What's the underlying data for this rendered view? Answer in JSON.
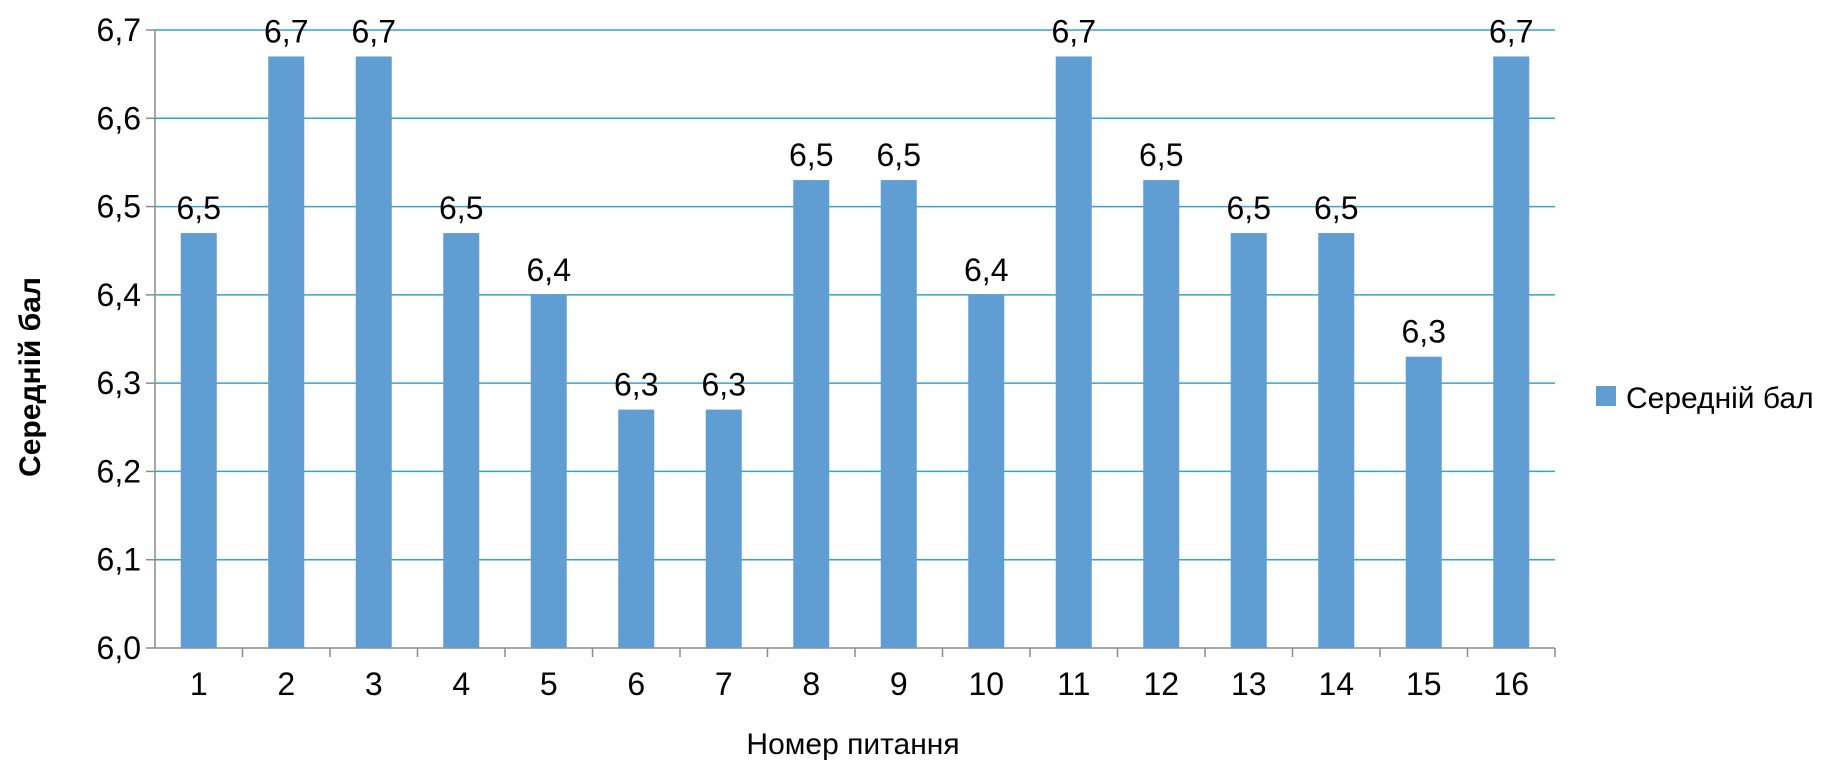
{
  "chart_data": {
    "type": "bar",
    "categories": [
      "1",
      "2",
      "3",
      "4",
      "5",
      "6",
      "7",
      "8",
      "9",
      "10",
      "11",
      "12",
      "13",
      "14",
      "15",
      "16"
    ],
    "series": [
      {
        "name": "Середній бал",
        "values": [
          6.47,
          6.67,
          6.67,
          6.47,
          6.4,
          6.27,
          6.27,
          6.53,
          6.53,
          6.4,
          6.67,
          6.53,
          6.47,
          6.47,
          6.33,
          6.67
        ],
        "data_labels": [
          "6,5",
          "6,7",
          "6,7",
          "6,5",
          "6,4",
          "6,3",
          "6,3",
          "6,5",
          "6,5",
          "6,4",
          "6,7",
          "6,5",
          "6,5",
          "6,5",
          "6,3",
          "6,7"
        ],
        "color": "#5f9dd3"
      }
    ],
    "xlabel": "Номер питання",
    "ylabel": "Середній бал",
    "ylim": [
      6.0,
      6.7
    ],
    "yticks": [
      6.0,
      6.1,
      6.2,
      6.3,
      6.4,
      6.5,
      6.6,
      6.7
    ],
    "ytick_labels": [
      "6,0",
      "6,1",
      "6,2",
      "6,3",
      "6,4",
      "6,5",
      "6,6",
      "6,7"
    ],
    "grid": true,
    "grid_color": "#29a9d6",
    "legend": {
      "position": "right",
      "entries": [
        "Середній бал"
      ]
    }
  }
}
